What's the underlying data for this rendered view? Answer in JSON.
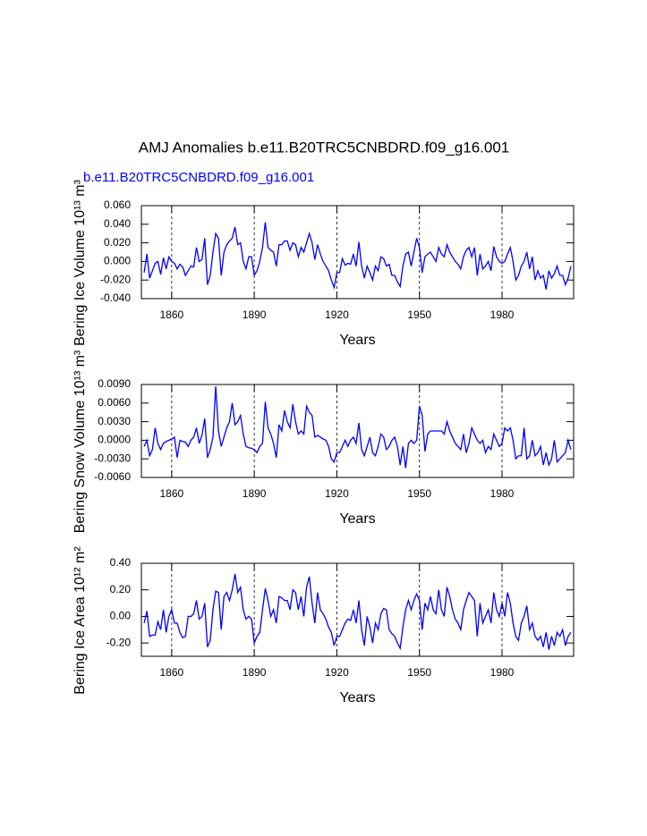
{
  "title": "AMJ Anomalies b.e11.B20TRC5CNBDRD.f09_g16.001",
  "subtitle": "b.e11.B20TRC5CNBDRD.f09_g16.001",
  "chart_data": [
    {
      "type": "line",
      "ylabel": "Bering Ice Volume 10¹³ m³",
      "xlabel": "Years",
      "xlim": [
        1849,
        2006
      ],
      "xticks": [
        1860,
        1890,
        1920,
        1950,
        1980
      ],
      "xgrid": true,
      "ylim": [
        -0.04,
        0.06
      ],
      "yticks": [
        {
          "value": 0.06,
          "label": "0.060"
        },
        {
          "value": 0.04,
          "label": "0.040"
        },
        {
          "value": 0.02,
          "label": "0.020"
        },
        {
          "value": 0,
          "label": "0.000"
        },
        {
          "value": -0.02,
          "label": "-0.020"
        },
        {
          "value": -0.04,
          "label": "-0.040"
        }
      ],
      "x": [
        1850,
        1851,
        1852,
        1853,
        1854,
        1855,
        1856,
        1857,
        1858,
        1859,
        1860,
        1861,
        1862,
        1863,
        1864,
        1865,
        1866,
        1867,
        1868,
        1869,
        1870,
        1871,
        1872,
        1873,
        1874,
        1875,
        1876,
        1877,
        1878,
        1879,
        1880,
        1881,
        1882,
        1883,
        1884,
        1885,
        1886,
        1887,
        1888,
        1889,
        1890,
        1891,
        1892,
        1893,
        1894,
        1895,
        1896,
        1897,
        1898,
        1899,
        1900,
        1901,
        1902,
        1903,
        1904,
        1905,
        1906,
        1907,
        1908,
        1909,
        1910,
        1911,
        1912,
        1913,
        1914,
        1915,
        1916,
        1917,
        1918,
        1919,
        1920,
        1921,
        1922,
        1923,
        1924,
        1925,
        1926,
        1927,
        1928,
        1929,
        1930,
        1931,
        1932,
        1933,
        1934,
        1935,
        1936,
        1937,
        1938,
        1939,
        1940,
        1941,
        1942,
        1943,
        1944,
        1945,
        1946,
        1947,
        1948,
        1949,
        1950,
        1951,
        1952,
        1953,
        1954,
        1955,
        1956,
        1957,
        1958,
        1959,
        1960,
        1961,
        1962,
        1963,
        1964,
        1965,
        1966,
        1967,
        1968,
        1969,
        1970,
        1971,
        1972,
        1973,
        1974,
        1975,
        1976,
        1977,
        1978,
        1979,
        1980,
        1981,
        1982,
        1983,
        1984,
        1985,
        1986,
        1987,
        1988,
        1989,
        1990,
        1991,
        1992,
        1993,
        1994,
        1995,
        1996,
        1997,
        1998,
        1999,
        2000,
        2001,
        2002,
        2003,
        2004,
        2005
      ],
      "series": [
        {
          "color": "#0000ff",
          "values": [
            -0.012,
            0.008,
            -0.018,
            -0.01,
            -0.002,
            0,
            -0.014,
            0.004,
            -0.008,
            0.005,
            0,
            -0.002,
            -0.008,
            -0.003,
            -0.006,
            -0.015,
            -0.01,
            -0.005,
            -0.006,
            0.015,
            0,
            0.002,
            0.025,
            -0.025,
            -0.015,
            0.01,
            0.03,
            0.025,
            -0.015,
            0.01,
            0.018,
            0.022,
            0.025,
            0.037,
            0.018,
            0.02,
            0,
            -0.008,
            0.005,
            0.005,
            -0.015,
            -0.01,
            0,
            0.015,
            0.042,
            0.015,
            0.012,
            0.01,
            -0.005,
            0.018,
            0.018,
            0.022,
            0.022,
            0.012,
            0.02,
            0.018,
            0.005,
            0.015,
            0.01,
            0.02,
            0.03,
            0.02,
            0.002,
            0.018,
            0.008,
            0,
            -0.005,
            -0.01,
            -0.02,
            -0.028,
            -0.012,
            -0.012,
            0.003,
            -0.004,
            -0.002,
            -0.003,
            0.008,
            -0.005,
            0.021,
            -0.005,
            -0.018,
            -0.005,
            -0.012,
            -0.02,
            -0.005,
            -0.01,
            0.005,
            0.003,
            -0.005,
            -0.003,
            -0.015,
            -0.015,
            -0.022,
            -0.027,
            -0.005,
            0.008,
            0.01,
            -0.005,
            0.01,
            0.025,
            0.015,
            -0.012,
            0.005,
            0.008,
            0.01,
            0.005,
            0,
            0.015,
            0.008,
            0.005,
            0.018,
            0.01,
            0.005,
            0,
            -0.003,
            -0.008,
            0.005,
            0.012,
            0.015,
            0.005,
            0.015,
            -0.015,
            0.008,
            -0.008,
            -0.005,
            0,
            -0.01,
            0.016,
            0.005,
            0,
            -0.002,
            0,
            0.008,
            0.015,
            0,
            -0.02,
            -0.015,
            -0.005,
            0,
            0.01,
            -0.008,
            0.005,
            -0.02,
            -0.01,
            -0.018,
            -0.015,
            -0.03,
            -0.01,
            -0.018,
            -0.013,
            -0.005,
            -0.015,
            -0.015,
            -0.025,
            -0.018,
            -0.005
          ]
        }
      ]
    },
    {
      "type": "line",
      "ylabel": "Bering Snow Volume 10¹³ m³",
      "xlabel": "Years",
      "xlim": [
        1849,
        2006
      ],
      "xticks": [
        1860,
        1890,
        1920,
        1950,
        1980
      ],
      "xgrid": true,
      "ylim": [
        -0.006,
        0.009
      ],
      "yticks": [
        {
          "value": 0.009,
          "label": "0.0090"
        },
        {
          "value": 0.006,
          "label": "0.0060"
        },
        {
          "value": 0.003,
          "label": "0.0030"
        },
        {
          "value": 0,
          "label": "0.0000"
        },
        {
          "value": -0.003,
          "label": "-0.0030"
        },
        {
          "value": -0.006,
          "label": "-0.0060"
        }
      ],
      "x": [
        1850,
        1851,
        1852,
        1853,
        1854,
        1855,
        1856,
        1857,
        1858,
        1859,
        1860,
        1861,
        1862,
        1863,
        1864,
        1865,
        1866,
        1867,
        1868,
        1869,
        1870,
        1871,
        1872,
        1873,
        1874,
        1875,
        1876,
        1877,
        1878,
        1879,
        1880,
        1881,
        1882,
        1883,
        1884,
        1885,
        1886,
        1887,
        1888,
        1889,
        1890,
        1891,
        1892,
        1893,
        1894,
        1895,
        1896,
        1897,
        1898,
        1899,
        1900,
        1901,
        1902,
        1903,
        1904,
        1905,
        1906,
        1907,
        1908,
        1909,
        1910,
        1911,
        1912,
        1913,
        1914,
        1915,
        1916,
        1917,
        1918,
        1919,
        1920,
        1921,
        1922,
        1923,
        1924,
        1925,
        1926,
        1927,
        1928,
        1929,
        1930,
        1931,
        1932,
        1933,
        1934,
        1935,
        1936,
        1937,
        1938,
        1939,
        1940,
        1941,
        1942,
        1943,
        1944,
        1945,
        1946,
        1947,
        1948,
        1949,
        1950,
        1951,
        1952,
        1953,
        1954,
        1955,
        1956,
        1957,
        1958,
        1959,
        1960,
        1961,
        1962,
        1963,
        1964,
        1965,
        1966,
        1967,
        1968,
        1969,
        1970,
        1971,
        1972,
        1973,
        1974,
        1975,
        1976,
        1977,
        1978,
        1979,
        1980,
        1981,
        1982,
        1983,
        1984,
        1985,
        1986,
        1987,
        1988,
        1989,
        1990,
        1991,
        1992,
        1993,
        1994,
        1995,
        1996,
        1997,
        1998,
        1999,
        2000,
        2001,
        2002,
        2003,
        2004,
        2005
      ],
      "series": [
        {
          "color": "#0000ff",
          "values": [
            -0.001,
            0,
            -0.0025,
            -0.0015,
            0.002,
            -0.0005,
            -0.0015,
            -0.0005,
            -0.0002,
            0,
            0.0002,
            0.0005,
            -0.0028,
            0,
            -0.0002,
            -0.0003,
            -0.001,
            0,
            0.0005,
            0.002,
            -0.0005,
            0.0008,
            0.0035,
            -0.0028,
            -0.0015,
            0.0005,
            0.0087,
            0.0015,
            -0.001,
            0.0005,
            0.002,
            0.003,
            0.006,
            0.0025,
            0.003,
            0.004,
            0.001,
            -0.001,
            -0.0012,
            -0.0013,
            -0.0015,
            -0.002,
            -0.001,
            -0.0005,
            0.0062,
            0.002,
            0.001,
            -0.0005,
            -0.0028,
            0.0025,
            0.0015,
            0.0048,
            0.003,
            0.002,
            0.0058,
            0.003,
            0.001,
            0.0015,
            0.001,
            0.0055,
            0.0045,
            0.004,
            0.0005,
            0.0008,
            0.0005,
            0.0002,
            0,
            -0.001,
            -0.003,
            -0.0035,
            -0.002,
            -0.002,
            -0.001,
            0,
            -0.001,
            0,
            0.0005,
            -0.0005,
            0.0028,
            -0.0015,
            -0.0025,
            -0.001,
            0.0005,
            -0.002,
            -0.0025,
            -0.001,
            0.001,
            0.0005,
            -0.0015,
            -0.001,
            0,
            0.0005,
            -0.001,
            -0.004,
            -0.001,
            -0.0045,
            -0.0005,
            0,
            -0.0005,
            0,
            0.0055,
            0.004,
            -0.0018,
            0.001,
            0.0015,
            0.0015,
            0.0015,
            0.0015,
            0.0015,
            0.001,
            0.003,
            0.0015,
            0.0005,
            -0.0005,
            -0.001,
            -0.0015,
            0.001,
            -0.002,
            -0.0005,
            0.002,
            0.001,
            0,
            -0.0005,
            0,
            -0.002,
            -0.001,
            -0.0015,
            0.001,
            0,
            -0.001,
            -0.0005,
            0.002,
            0.0015,
            0.002,
            0,
            -0.003,
            -0.0025,
            -0.0025,
            0.002,
            -0.003,
            -0.0025,
            0,
            -0.0025,
            -0.002,
            -0.001,
            -0.004,
            -0.002,
            -0.004,
            -0.003,
            0,
            -0.0035,
            -0.003,
            -0.0025,
            -0.002,
            0,
            -0.0015
          ]
        }
      ]
    },
    {
      "type": "line",
      "ylabel": "Bering Ice Area 10¹² m²",
      "xlabel": "Years",
      "xlim": [
        1849,
        2006
      ],
      "xticks": [
        1860,
        1890,
        1920,
        1950,
        1980
      ],
      "xgrid": true,
      "ylim": [
        -0.3,
        0.4
      ],
      "yticks": [
        {
          "value": 0.4,
          "label": "0.40"
        },
        {
          "value": 0.2,
          "label": "0.20"
        },
        {
          "value": 0,
          "label": "0.00"
        },
        {
          "value": -0.2,
          "label": "-0.20"
        }
      ],
      "x": [
        1850,
        1851,
        1852,
        1853,
        1854,
        1855,
        1856,
        1857,
        1858,
        1859,
        1860,
        1861,
        1862,
        1863,
        1864,
        1865,
        1866,
        1867,
        1868,
        1869,
        1870,
        1871,
        1872,
        1873,
        1874,
        1875,
        1876,
        1877,
        1878,
        1879,
        1880,
        1881,
        1882,
        1883,
        1884,
        1885,
        1886,
        1887,
        1888,
        1889,
        1890,
        1891,
        1892,
        1893,
        1894,
        1895,
        1896,
        1897,
        1898,
        1899,
        1900,
        1901,
        1902,
        1903,
        1904,
        1905,
        1906,
        1907,
        1908,
        1909,
        1910,
        1911,
        1912,
        1913,
        1914,
        1915,
        1916,
        1917,
        1918,
        1919,
        1920,
        1921,
        1922,
        1923,
        1924,
        1925,
        1926,
        1927,
        1928,
        1929,
        1930,
        1931,
        1932,
        1933,
        1934,
        1935,
        1936,
        1937,
        1938,
        1939,
        1940,
        1941,
        1942,
        1943,
        1944,
        1945,
        1946,
        1947,
        1948,
        1949,
        1950,
        1951,
        1952,
        1953,
        1954,
        1955,
        1956,
        1957,
        1958,
        1959,
        1960,
        1961,
        1962,
        1963,
        1964,
        1965,
        1966,
        1967,
        1968,
        1969,
        1970,
        1971,
        1972,
        1973,
        1974,
        1975,
        1976,
        1977,
        1978,
        1979,
        1980,
        1981,
        1982,
        1983,
        1984,
        1985,
        1986,
        1987,
        1988,
        1989,
        1990,
        1991,
        1992,
        1993,
        1994,
        1995,
        1996,
        1997,
        1998,
        1999,
        2000,
        2001,
        2002,
        2003,
        2004,
        2005
      ],
      "series": [
        {
          "color": "#0000ff",
          "values": [
            -0.05,
            0.04,
            -0.15,
            -0.14,
            -0.14,
            -0.04,
            -0.1,
            0.05,
            -0.12,
            0,
            0.05,
            -0.05,
            -0.05,
            -0.12,
            -0.16,
            -0.15,
            0,
            0,
            0.02,
            0.12,
            -0.02,
            0,
            0.1,
            -0.23,
            -0.18,
            0.05,
            0.19,
            0.18,
            -0.1,
            0.15,
            0.18,
            0.12,
            0.2,
            0.32,
            0.18,
            0.22,
            0.05,
            -0.02,
            0,
            -0.02,
            -0.2,
            -0.15,
            -0.12,
            0.05,
            0.21,
            0.12,
            0,
            0.05,
            -0.05,
            0.15,
            0.14,
            0.12,
            0.12,
            0.05,
            0.2,
            0.18,
            0.05,
            0.15,
            0,
            0.22,
            0.3,
            0.1,
            -0.05,
            0.18,
            0.05,
            0.02,
            -0.02,
            -0.08,
            -0.12,
            -0.22,
            -0.15,
            -0.15,
            -0.1,
            -0.05,
            -0.02,
            -0.03,
            0.05,
            -0.05,
            0.12,
            -0.1,
            -0.22,
            0,
            -0.08,
            -0.2,
            -0.05,
            -0.1,
            0.02,
            0.06,
            0.05,
            -0.1,
            -0.13,
            -0.15,
            -0.2,
            -0.24,
            -0.08,
            0.05,
            0.12,
            0.05,
            0.12,
            0.17,
            0.12,
            -0.1,
            0.1,
            0.05,
            0.15,
            0.05,
            0.02,
            0.2,
            0.05,
            0,
            0.22,
            0.15,
            0.05,
            -0.02,
            -0.05,
            -0.1,
            0.05,
            0.12,
            0.18,
            0.15,
            0.12,
            -0.15,
            0.1,
            -0.05,
            0,
            0.05,
            -0.05,
            0.18,
            0.05,
            0,
            0.1,
            0,
            0.18,
            0.1,
            -0.05,
            -0.15,
            -0.18,
            -0.05,
            0,
            0.08,
            -0.1,
            -0.05,
            -0.15,
            -0.18,
            -0.15,
            -0.23,
            -0.12,
            -0.25,
            -0.15,
            -0.22,
            -0.12,
            -0.15,
            -0.1,
            -0.22,
            -0.15,
            -0.12
          ]
        }
      ]
    }
  ]
}
